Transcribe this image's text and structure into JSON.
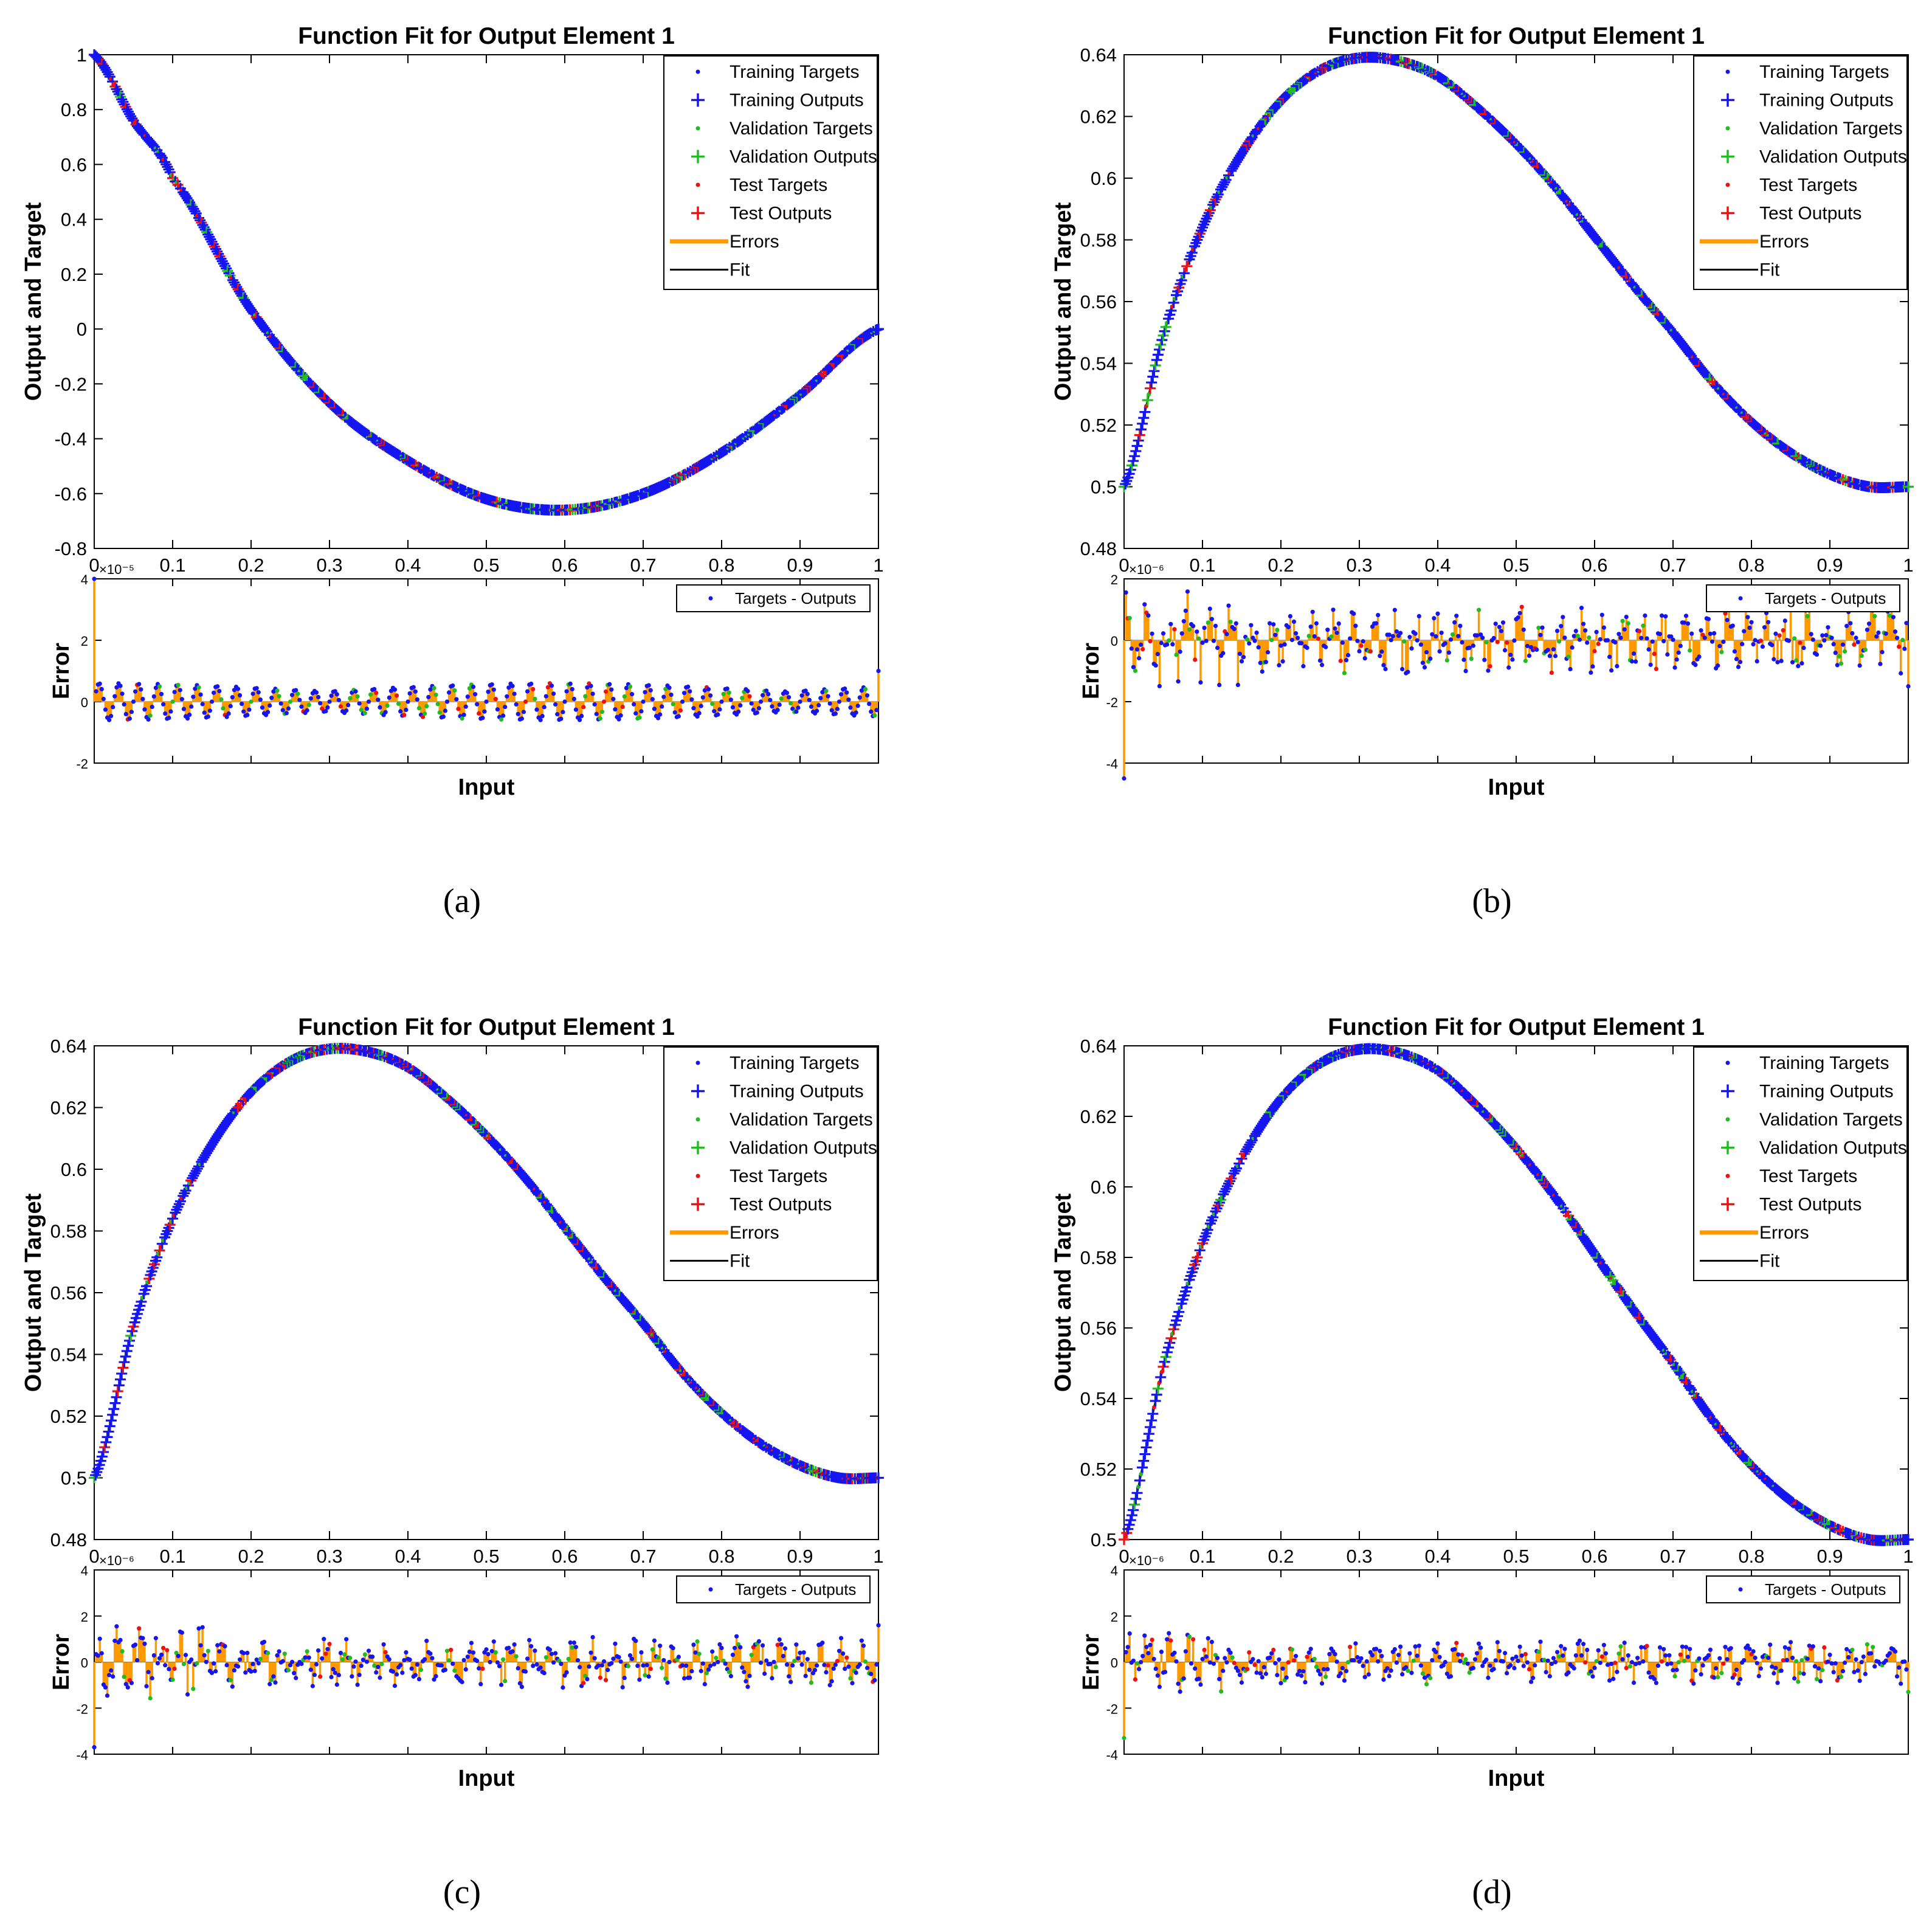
{
  "figure": {
    "title": "Function Fit for Output Element 1",
    "xlabel": "Input",
    "ylabel_main": "Output and Target",
    "ylabel_err": "Error",
    "legend_main": [
      "Training Targets",
      "Training Outputs",
      "Validation Targets",
      "Validation Outputs",
      "Test Targets",
      "Test Outputs",
      "Errors",
      "Fit"
    ],
    "legend_err": "Targets - Outputs",
    "colors": {
      "training": "#1515f0",
      "validation": "#22bb22",
      "test": "#ee1111",
      "errors": "#ff9900",
      "fit": "#000000"
    }
  },
  "chart_data": [
    {
      "panel": "(a)",
      "type": "scatter",
      "title": "Function Fit for Output Element 1",
      "xlabel": "Input",
      "ylabel": "Output and Target",
      "xlim": [
        0,
        1
      ],
      "ylim": [
        -0.8,
        1
      ],
      "xticks": [
        "0",
        "0.1",
        "0.2",
        "0.3",
        "0.4",
        "0.5",
        "0.6",
        "0.7",
        "0.8",
        "0.9",
        "1"
      ],
      "yticks": [
        "-0.8",
        "-0.6",
        "-0.4",
        "-0.2",
        "0",
        "0.2",
        "0.4",
        "0.6",
        "0.8",
        "1"
      ],
      "curve": {
        "x": [
          0,
          0.05,
          0.1,
          0.2,
          0.3,
          0.4,
          0.5,
          0.6,
          0.7,
          0.8,
          0.9,
          1
        ],
        "y": [
          1,
          0.76,
          0.55,
          0.07,
          -0.27,
          -0.48,
          -0.62,
          -0.66,
          -0.6,
          -0.45,
          -0.24,
          0
        ]
      },
      "error": {
        "ylabel": "Error",
        "exponent": "×10⁻⁵",
        "ylim": [
          -2,
          4
        ],
        "yticks": [
          "-2",
          "0",
          "2",
          "4"
        ],
        "pattern": "sinusoidal",
        "amplitude": 0.6,
        "spike_start": 4,
        "spike_end": 1,
        "legend": "Targets - Outputs"
      }
    },
    {
      "panel": "(b)",
      "type": "scatter",
      "title": "Function Fit for Output Element 1",
      "xlabel": "Input",
      "ylabel": "Output and Target",
      "xlim": [
        0,
        1
      ],
      "ylim": [
        0.48,
        0.64
      ],
      "xticks": [
        "0",
        "0.1",
        "0.2",
        "0.3",
        "0.4",
        "0.5",
        "0.6",
        "0.7",
        "0.8",
        "0.9",
        "1"
      ],
      "yticks": [
        "0.48",
        "0.5",
        "0.52",
        "0.54",
        "0.56",
        "0.58",
        "0.6",
        "0.62",
        "0.64"
      ],
      "curve": {
        "x": [
          0,
          0.05,
          0.1,
          0.15,
          0.2,
          0.25,
          0.3,
          0.35,
          0.4,
          0.45,
          0.5,
          0.55,
          0.6,
          0.65,
          0.7,
          0.75,
          0.8,
          0.85,
          0.9,
          0.95,
          1
        ],
        "y": [
          0.5,
          0.549,
          0.584,
          0.608,
          0.625,
          0.635,
          0.639,
          0.638,
          0.633,
          0.623,
          0.611,
          0.597,
          0.581,
          0.565,
          0.55,
          0.534,
          0.521,
          0.511,
          0.504,
          0.5,
          0.5
        ]
      },
      "error": {
        "ylabel": "Error",
        "exponent": "×10⁻⁶",
        "ylim": [
          -4,
          2
        ],
        "yticks": [
          "-4",
          "-2",
          "0",
          "2"
        ],
        "pattern": "noisy",
        "amplitude": 0.8,
        "spike_start": -4.5,
        "spike_end": -1.5,
        "legend": "Targets - Outputs"
      }
    },
    {
      "panel": "(c)",
      "type": "scatter",
      "title": "Function Fit for Output Element 1",
      "xlabel": "Input",
      "ylabel": "Output and Target",
      "xlim": [
        0,
        1
      ],
      "ylim": [
        0.48,
        0.64
      ],
      "xticks": [
        "0",
        "0.1",
        "0.2",
        "0.3",
        "0.4",
        "0.5",
        "0.6",
        "0.7",
        "0.8",
        "0.9",
        "1"
      ],
      "yticks": [
        "0.48",
        "0.5",
        "0.52",
        "0.54",
        "0.56",
        "0.58",
        "0.6",
        "0.62",
        "0.64"
      ],
      "curve": {
        "x": [
          0,
          0.05,
          0.1,
          0.15,
          0.2,
          0.25,
          0.3,
          0.35,
          0.4,
          0.45,
          0.5,
          0.55,
          0.6,
          0.65,
          0.7,
          0.75,
          0.8,
          0.85,
          0.9,
          0.95,
          1
        ],
        "y": [
          0.5,
          0.549,
          0.584,
          0.608,
          0.625,
          0.635,
          0.639,
          0.638,
          0.633,
          0.623,
          0.611,
          0.597,
          0.581,
          0.565,
          0.55,
          0.534,
          0.521,
          0.511,
          0.504,
          0.5,
          0.5
        ]
      },
      "error": {
        "ylabel": "Error",
        "exponent": "×10⁻⁶",
        "ylim": [
          -4,
          4
        ],
        "yticks": [
          "-4",
          "-2",
          "0",
          "2",
          "4"
        ],
        "pattern": "noisy",
        "amplitude": 0.8,
        "spike_start": -3.7,
        "spike_end": 1.6,
        "legend": "Targets - Outputs"
      }
    },
    {
      "panel": "(d)",
      "type": "scatter",
      "title": "Function Fit for Output Element 1",
      "xlabel": "Input",
      "ylabel": "Output and Target",
      "xlim": [
        0,
        1
      ],
      "ylim": [
        0.5,
        0.64
      ],
      "xticks": [
        "0",
        "0.1",
        "0.2",
        "0.3",
        "0.4",
        "0.5",
        "0.6",
        "0.7",
        "0.8",
        "0.9",
        "1"
      ],
      "yticks": [
        "0.5",
        "0.52",
        "0.54",
        "0.56",
        "0.58",
        "0.6",
        "0.62",
        "0.64"
      ],
      "curve": {
        "x": [
          0,
          0.05,
          0.1,
          0.15,
          0.2,
          0.25,
          0.3,
          0.35,
          0.4,
          0.45,
          0.5,
          0.55,
          0.6,
          0.65,
          0.7,
          0.75,
          0.8,
          0.85,
          0.9,
          0.95,
          1
        ],
        "y": [
          0.5,
          0.549,
          0.584,
          0.608,
          0.625,
          0.635,
          0.639,
          0.638,
          0.633,
          0.623,
          0.611,
          0.597,
          0.581,
          0.565,
          0.55,
          0.534,
          0.521,
          0.511,
          0.504,
          0.5,
          0.5
        ]
      },
      "error": {
        "ylabel": "Error",
        "exponent": "×10⁻⁶",
        "ylim": [
          -4,
          4
        ],
        "yticks": [
          "-4",
          "-2",
          "0",
          "2",
          "4"
        ],
        "pattern": "noisy",
        "amplitude": 0.7,
        "spike_start": -3.3,
        "spike_end": -1.3,
        "legend": "Targets - Outputs"
      }
    }
  ]
}
